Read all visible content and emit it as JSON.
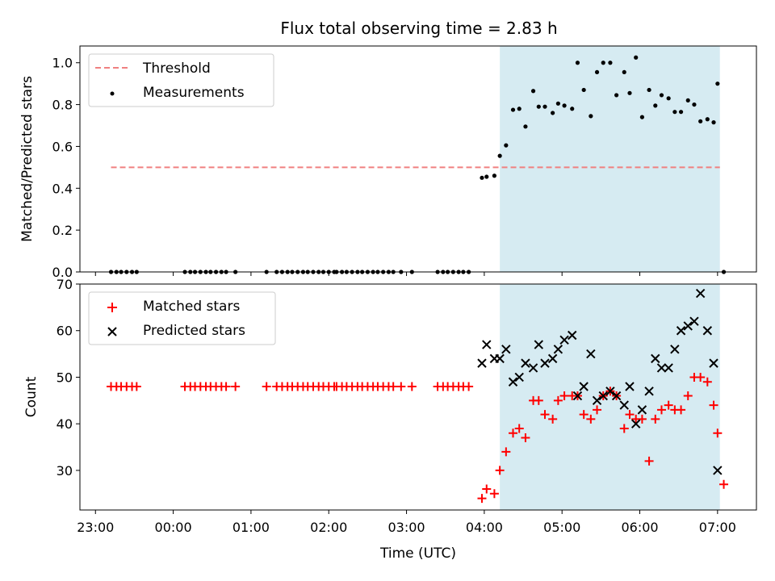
{
  "figure": {
    "title": "Flux total observing time = 2.83 h",
    "xlabel": "Time (UTC)",
    "x_ticks": [
      "23:00",
      "00:00",
      "01:00",
      "02:00",
      "03:00",
      "04:00",
      "05:00",
      "06:00",
      "07:00"
    ],
    "x_tick_hours": [
      0,
      1,
      2,
      3,
      4,
      5,
      6,
      7,
      8
    ],
    "xlim_hours": [
      -0.2,
      8.5
    ],
    "shaded_hours": [
      5.2,
      8.03
    ],
    "colors": {
      "shade": "#add8e6",
      "threshold": "#f08080",
      "measurement": "#000000",
      "matched": "#ff0000",
      "predicted": "#000000"
    }
  },
  "chart_data": [
    {
      "type": "scatter",
      "ylabel": "Matched/Predicted stars",
      "ylim": [
        0,
        1.08
      ],
      "y_ticks": [
        "0.0",
        "0.2",
        "0.4",
        "0.6",
        "0.8",
        "1.0"
      ],
      "y_tick_values": [
        0,
        0.2,
        0.4,
        0.6,
        0.8,
        1.0
      ],
      "legend_placement": "upper-left",
      "threshold": {
        "name": "Threshold",
        "value": 0.5,
        "x_range_hours": [
          0.2,
          8.03
        ]
      },
      "series": [
        {
          "name": "Measurements",
          "x_hours": [
            0.2,
            0.27,
            0.33,
            0.4,
            0.47,
            0.53,
            1.15,
            1.22,
            1.28,
            1.35,
            1.42,
            1.48,
            1.55,
            1.62,
            1.68,
            1.8,
            2.2,
            2.33,
            2.4,
            2.47,
            2.53,
            2.6,
            2.67,
            2.73,
            2.8,
            2.87,
            2.93,
            3.0,
            3.07,
            3.1,
            3.17,
            3.23,
            3.3,
            3.37,
            3.43,
            3.5,
            3.57,
            3.63,
            3.7,
            3.77,
            3.83,
            3.93,
            4.07,
            4.4,
            4.47,
            4.53,
            4.6,
            4.67,
            4.73,
            4.8,
            4.97,
            5.03,
            5.13,
            5.2,
            5.28,
            5.37,
            5.45,
            5.53,
            5.63,
            5.7,
            5.78,
            5.88,
            5.95,
            6.03,
            6.13,
            6.2,
            6.28,
            6.37,
            6.45,
            6.53,
            6.62,
            6.7,
            6.8,
            6.87,
            6.95,
            7.03,
            7.12,
            7.2,
            7.28,
            7.37,
            7.45,
            7.53,
            7.62,
            7.7,
            7.78,
            7.87,
            7.95,
            8.0,
            8.08
          ],
          "y": [
            0,
            0,
            0,
            0,
            0,
            0,
            0,
            0,
            0,
            0,
            0,
            0,
            0,
            0,
            0,
            0,
            0,
            0,
            0,
            0,
            0,
            0,
            0,
            0,
            0,
            0,
            0,
            0,
            0,
            0,
            0,
            0,
            0,
            0,
            0,
            0,
            0,
            0,
            0,
            0,
            0,
            0,
            0,
            0,
            0,
            0,
            0,
            0,
            0,
            0,
            0.45,
            0.455,
            0.46,
            0.555,
            0.605,
            0.775,
            0.78,
            0.695,
            0.865,
            0.79,
            0.79,
            0.76,
            0.805,
            0.795,
            0.78,
            1.0,
            0.87,
            0.745,
            0.955,
            1.0,
            1.0,
            0.845,
            0.955,
            0.855,
            1.025,
            0.74,
            0.87,
            0.795,
            0.845,
            0.83,
            0.765,
            0.765,
            0.82,
            0.8,
            0.72,
            0.73,
            0.715,
            0.9,
            0
          ]
        }
      ]
    },
    {
      "type": "scatter",
      "ylabel": "Count",
      "ylim": [
        21.5,
        70
      ],
      "y_ticks": [
        "30",
        "40",
        "50",
        "60",
        "70"
      ],
      "y_tick_values": [
        30,
        40,
        50,
        60,
        70
      ],
      "legend_placement": "upper-left",
      "series": [
        {
          "name": "Matched stars",
          "marker": "plus",
          "x_hours": [
            0.2,
            0.27,
            0.33,
            0.4,
            0.47,
            0.53,
            1.15,
            1.22,
            1.28,
            1.35,
            1.42,
            1.48,
            1.55,
            1.62,
            1.68,
            1.8,
            2.2,
            2.33,
            2.4,
            2.47,
            2.53,
            2.6,
            2.67,
            2.73,
            2.8,
            2.87,
            2.93,
            3.0,
            3.07,
            3.1,
            3.17,
            3.23,
            3.3,
            3.37,
            3.43,
            3.5,
            3.57,
            3.63,
            3.7,
            3.77,
            3.83,
            3.93,
            4.07,
            4.4,
            4.47,
            4.53,
            4.6,
            4.67,
            4.73,
            4.8,
            4.97,
            5.03,
            5.13,
            5.2,
            5.28,
            5.37,
            5.45,
            5.53,
            5.63,
            5.7,
            5.78,
            5.88,
            5.95,
            6.03,
            6.13,
            6.2,
            6.28,
            6.37,
            6.45,
            6.53,
            6.62,
            6.7,
            6.8,
            6.87,
            6.95,
            7.03,
            7.12,
            7.2,
            7.28,
            7.37,
            7.45,
            7.53,
            7.62,
            7.7,
            7.78,
            7.87,
            7.95,
            8.0,
            8.08
          ],
          "y": [
            48,
            48,
            48,
            48,
            48,
            48,
            48,
            48,
            48,
            48,
            48,
            48,
            48,
            48,
            48,
            48,
            48,
            48,
            48,
            48,
            48,
            48,
            48,
            48,
            48,
            48,
            48,
            48,
            48,
            48,
            48,
            48,
            48,
            48,
            48,
            48,
            48,
            48,
            48,
            48,
            48,
            48,
            48,
            48,
            48,
            48,
            48,
            48,
            48,
            48,
            24,
            26,
            25,
            30,
            34,
            38,
            39,
            37,
            45,
            45,
            42,
            41,
            45,
            46,
            46,
            46,
            42,
            41,
            43,
            46,
            47,
            46,
            39,
            42,
            41,
            41,
            32,
            41,
            43,
            44,
            43,
            43,
            46,
            50,
            50,
            49,
            44,
            38,
            27
          ]
        },
        {
          "name": "Predicted stars",
          "marker": "x",
          "x_hours": [
            4.97,
            5.03,
            5.13,
            5.2,
            5.28,
            5.37,
            5.45,
            5.53,
            5.63,
            5.7,
            5.78,
            5.88,
            5.95,
            6.03,
            6.13,
            6.2,
            6.28,
            6.37,
            6.45,
            6.53,
            6.62,
            6.7,
            6.8,
            6.87,
            6.95,
            7.03,
            7.12,
            7.2,
            7.28,
            7.37,
            7.45,
            7.53,
            7.62,
            7.7,
            7.78,
            7.87,
            7.95,
            8.0
          ],
          "y": [
            53,
            57,
            54,
            54,
            56,
            49,
            50,
            53,
            52,
            57,
            53,
            54,
            56,
            58,
            59,
            46,
            48,
            55,
            45,
            46,
            47,
            46,
            44,
            48,
            40,
            43,
            47,
            54,
            52,
            52,
            56,
            60,
            61,
            62,
            68,
            60,
            53,
            30
          ]
        }
      ]
    }
  ]
}
